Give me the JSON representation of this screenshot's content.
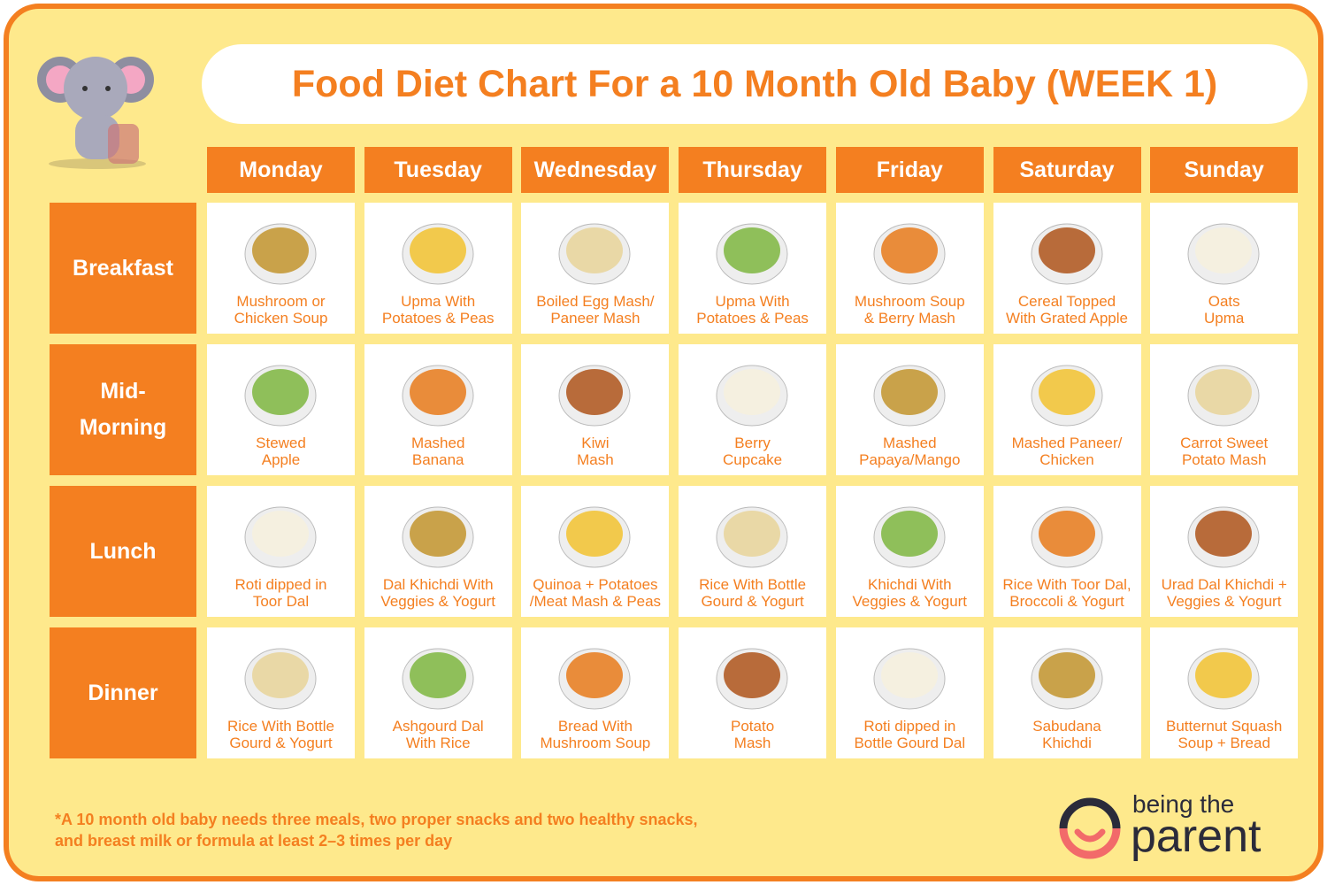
{
  "title": "Food Diet Chart For a 10 Month Old Baby (WEEK 1)",
  "days": [
    "Monday",
    "Tuesday",
    "Wednesday",
    "Thursday",
    "Friday",
    "Saturday",
    "Sunday"
  ],
  "meals": [
    {
      "label": [
        "Breakfast"
      ],
      "cells": [
        [
          "Mushroom or",
          "Chicken Soup"
        ],
        [
          "Upma With",
          "Potatoes & Peas"
        ],
        [
          "Boiled Egg Mash/",
          "Paneer Mash"
        ],
        [
          "Upma With",
          "Potatoes & Peas"
        ],
        [
          "Mushroom Soup",
          "& Berry Mash"
        ],
        [
          "Cereal Topped",
          "With Grated Apple"
        ],
        [
          "Oats",
          "Upma"
        ]
      ]
    },
    {
      "label": [
        "Mid-",
        "Morning"
      ],
      "cells": [
        [
          "Stewed",
          "Apple"
        ],
        [
          "Mashed",
          "Banana"
        ],
        [
          "Kiwi",
          "Mash"
        ],
        [
          "Berry",
          "Cupcake"
        ],
        [
          "Mashed",
          "Papaya/Mango"
        ],
        [
          "Mashed Paneer/",
          "Chicken"
        ],
        [
          "Carrot Sweet",
          "Potato Mash"
        ]
      ]
    },
    {
      "label": [
        "Lunch"
      ],
      "cells": [
        [
          "Roti dipped in",
          "Toor Dal"
        ],
        [
          "Dal Khichdi With",
          "Veggies & Yogurt"
        ],
        [
          "Quinoa + Potatoes",
          "/Meat Mash & Peas"
        ],
        [
          "Rice With Bottle",
          "Gourd & Yogurt"
        ],
        [
          "Khichdi With",
          "Veggies & Yogurt"
        ],
        [
          "Rice With Toor Dal,",
          "Broccoli & Yogurt"
        ],
        [
          "Urad Dal Khichdi +",
          "Veggies & Yogurt"
        ]
      ]
    },
    {
      "label": [
        "Dinner"
      ],
      "cells": [
        [
          "Rice With Bottle",
          "Gourd & Yogurt"
        ],
        [
          "Ashgourd Dal",
          "With Rice"
        ],
        [
          "Bread With",
          "Mushroom Soup"
        ],
        [
          "Potato",
          "Mash"
        ],
        [
          "Roti dipped in",
          "Bottle Gourd Dal"
        ],
        [
          "Sabudana",
          "Khichdi"
        ],
        [
          "Butternut Squash",
          "Soup + Bread"
        ]
      ]
    }
  ],
  "footnote": [
    "*A 10 month old baby needs three meals, two proper snacks and two healthy snacks,",
    "and breast milk or formula at least 2–3 times per day"
  ],
  "logo": {
    "top": "being the",
    "bottom": "parent"
  }
}
